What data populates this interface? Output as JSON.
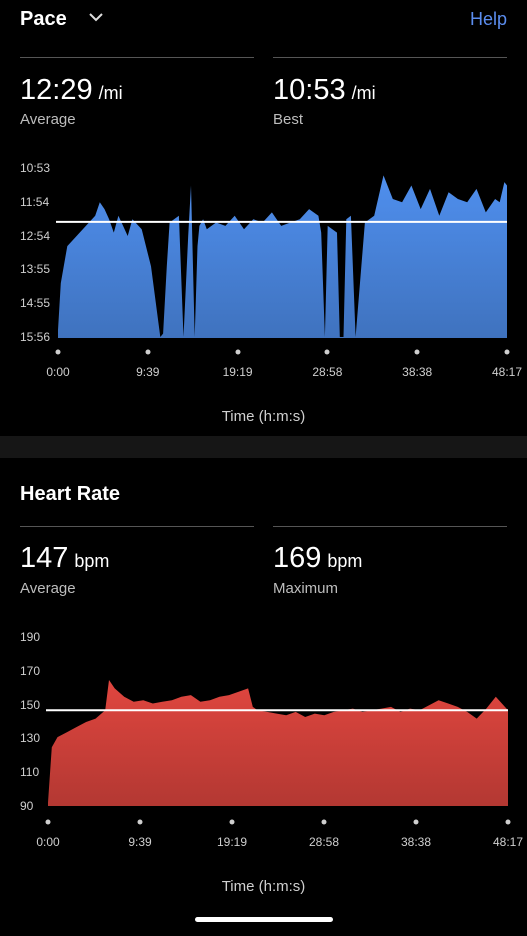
{
  "pace": {
    "title": "Pace",
    "help_label": "Help",
    "average": {
      "value": "12:29",
      "unit": "/mi",
      "label": "Average"
    },
    "best": {
      "value": "10:53",
      "unit": "/mi",
      "label": "Best"
    },
    "y_ticks": [
      "10:53",
      "11:54",
      "12:54",
      "13:55",
      "14:55",
      "15:56"
    ],
    "x_ticks": [
      "0:00",
      "9:39",
      "19:19",
      "28:58",
      "38:38",
      "48:17"
    ],
    "x_title": "Time (h:m:s)",
    "color": "#4f8fee"
  },
  "heart_rate": {
    "title": "Heart Rate",
    "average": {
      "value": "147",
      "unit": "bpm",
      "label": "Average"
    },
    "maximum": {
      "value": "169",
      "unit": "bpm",
      "label": "Maximum"
    },
    "y_ticks": [
      "190",
      "170",
      "150",
      "130",
      "110",
      "90"
    ],
    "x_ticks": [
      "0:00",
      "9:39",
      "19:19",
      "28:58",
      "38:38",
      "48:17"
    ],
    "x_title": "Time (h:m:s)",
    "color": "#e0463f"
  },
  "chart_data": [
    {
      "type": "area",
      "title": "Pace",
      "xlabel": "Time (h:m:s)",
      "ylabel": "",
      "y_unit": "min/mi",
      "y_inverted": true,
      "ylim": [
        15.93,
        10.88
      ],
      "xlim": [
        0,
        48.28
      ],
      "reference_line": 12.48,
      "x": [
        0,
        0.3,
        1,
        2,
        3,
        4,
        4.5,
        5,
        5.5,
        6,
        6.5,
        7,
        7.5,
        8,
        9,
        10,
        11,
        11.3,
        11.7,
        12,
        13,
        13.5,
        14,
        14.3,
        14.7,
        15,
        15.2,
        15.6,
        16,
        17,
        18,
        19,
        20,
        21,
        22,
        23,
        24,
        25,
        26,
        27,
        28,
        28.3,
        28.7,
        29,
        30,
        30.3,
        30.7,
        31,
        31.5,
        32,
        33,
        34,
        35,
        36,
        37,
        38,
        39,
        40,
        41,
        42,
        43,
        44,
        45,
        46,
        47,
        47.5,
        48,
        48.28
      ],
      "y": [
        15.7,
        14.3,
        13.2,
        12.9,
        12.6,
        12.3,
        11.9,
        12.1,
        12.4,
        12.8,
        12.3,
        12.6,
        12.9,
        12.4,
        12.7,
        13.8,
        15.9,
        15.8,
        13.8,
        12.5,
        12.3,
        15.9,
        12.9,
        11.4,
        15.9,
        13.2,
        12.6,
        12.4,
        12.7,
        12.5,
        12.6,
        12.3,
        12.7,
        12.4,
        12.5,
        12.2,
        12.6,
        12.5,
        12.4,
        12.1,
        12.3,
        12.8,
        15.9,
        12.6,
        12.8,
        15.9,
        15.9,
        12.4,
        12.3,
        15.9,
        12.5,
        12.3,
        11.1,
        11.8,
        11.9,
        11.4,
        12.1,
        11.5,
        12.3,
        11.6,
        11.8,
        11.9,
        11.5,
        12.2,
        11.8,
        11.9,
        11.3,
        11.4
      ]
    },
    {
      "type": "area",
      "title": "Heart Rate",
      "xlabel": "Time (h:m:s)",
      "ylabel": "",
      "y_unit": "bpm",
      "ylim": [
        90,
        190
      ],
      "xlim": [
        0,
        48.28
      ],
      "reference_line": 147,
      "x": [
        0,
        0.4,
        1,
        2,
        3,
        4,
        5,
        6,
        6.4,
        7,
        8,
        9,
        10,
        11,
        12,
        13,
        14,
        15,
        16,
        17,
        18,
        19,
        20,
        21,
        21.5,
        22,
        23,
        24,
        25,
        26,
        27,
        28,
        29,
        30,
        31,
        32,
        33,
        34,
        35,
        36,
        37,
        38,
        39,
        40,
        41,
        42,
        43,
        44,
        45,
        46,
        47,
        48.28
      ],
      "y": [
        92,
        125,
        131,
        134,
        137,
        140,
        142,
        147,
        165,
        160,
        155,
        152,
        153,
        151,
        152,
        153,
        155,
        156,
        152,
        153,
        155,
        156,
        158,
        160,
        149,
        147,
        146,
        145,
        144,
        146,
        143,
        145,
        144,
        146,
        147,
        148,
        146,
        147,
        148,
        149,
        146,
        148,
        147,
        150,
        153,
        151,
        149,
        146,
        142,
        148,
        155,
        147
      ]
    }
  ]
}
